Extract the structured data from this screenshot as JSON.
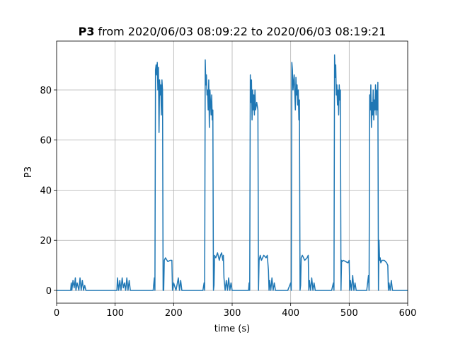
{
  "chart_data": {
    "type": "line",
    "title": {
      "bold": "P3",
      "text": "from 2020/06/03 08:09:22 to 2020/06/03 08:19:21"
    },
    "xlabel": "time (s)",
    "ylabel": "P3",
    "color": "#1f77b4",
    "grid": true,
    "xlim": [
      0,
      600
    ],
    "ylim": [
      -5.1,
      99.5
    ],
    "xticks": [
      0,
      100,
      200,
      300,
      400,
      500,
      600
    ],
    "yticks": [
      0,
      20,
      40,
      60,
      80
    ],
    "x": [
      0,
      5,
      10,
      20,
      24,
      25,
      26,
      28,
      30,
      32,
      33,
      35,
      38,
      40,
      42,
      44,
      46,
      48,
      50,
      60,
      80,
      100,
      103,
      104,
      106,
      108,
      110,
      112,
      114,
      116,
      118,
      120,
      122,
      124,
      126,
      130,
      150,
      165,
      167,
      168,
      169,
      170,
      171,
      172,
      173,
      174,
      175,
      176,
      177,
      178,
      179,
      180,
      181,
      182,
      183,
      184,
      186,
      190,
      194,
      197,
      198,
      200,
      204,
      208,
      210,
      212,
      214,
      216,
      230,
      250,
      252,
      253,
      254,
      255,
      256,
      257,
      258,
      259,
      260,
      261,
      262,
      263,
      264,
      265,
      266,
      267,
      268,
      269,
      270,
      272,
      275,
      278,
      280,
      282,
      284,
      285,
      286,
      288,
      290,
      292,
      294,
      296,
      298,
      300,
      320,
      328,
      329,
      330,
      331,
      332,
      333,
      334,
      335,
      336,
      337,
      338,
      339,
      340,
      342,
      344,
      345,
      346,
      347,
      348,
      350,
      354,
      358,
      360,
      362,
      363,
      364,
      366,
      368,
      370,
      372,
      374,
      380,
      395,
      400,
      401,
      402,
      403,
      404,
      406,
      408,
      409,
      410,
      411,
      412,
      413,
      414,
      415,
      416,
      417,
      418,
      420,
      424,
      428,
      430,
      431,
      432,
      434,
      436,
      438,
      440,
      442,
      444,
      460,
      470,
      473,
      474,
      475,
      476,
      477,
      478,
      479,
      480,
      481,
      482,
      483,
      484,
      485,
      486,
      487,
      488,
      490,
      494,
      498,
      500,
      501,
      502,
      504,
      506,
      508,
      510,
      512,
      530,
      533,
      534,
      535,
      536,
      537,
      538,
      539,
      540,
      541,
      542,
      543,
      544,
      545,
      546,
      547,
      548,
      549,
      550,
      551,
      552,
      553,
      554,
      556,
      560,
      564,
      566,
      567,
      568,
      570,
      572,
      574,
      580,
      600
    ],
    "values": [
      0,
      0,
      0,
      0,
      0,
      3,
      0,
      4,
      1,
      5,
      0,
      3,
      0,
      5,
      0,
      4,
      0,
      2,
      0,
      0,
      0,
      0,
      0,
      5,
      0,
      4,
      0,
      5,
      1,
      3,
      0,
      5,
      0,
      4,
      0,
      0,
      0,
      0,
      5,
      0,
      88,
      90,
      86,
      91,
      80,
      89,
      63,
      84,
      78,
      82,
      70,
      84,
      80,
      0,
      0,
      12,
      13,
      11.5,
      12,
      12,
      0,
      3,
      0,
      5,
      0,
      4,
      0,
      0,
      0,
      0,
      3,
      0,
      92,
      82,
      86,
      78,
      80,
      72,
      84,
      65,
      80,
      75,
      70,
      78,
      68,
      72,
      0,
      2,
      14,
      13,
      15,
      12,
      14,
      15,
      12,
      14,
      5,
      0,
      4,
      0,
      5,
      0,
      3,
      0,
      0,
      0,
      3,
      0,
      86,
      75,
      84,
      68,
      80,
      72,
      78,
      70,
      80,
      72,
      75,
      72,
      0,
      12,
      13,
      14,
      12,
      14,
      13,
      14,
      8,
      0,
      4,
      0,
      5,
      0,
      3,
      0,
      0,
      0,
      3,
      0,
      91,
      88,
      80,
      86,
      72,
      85,
      78,
      82,
      74,
      80,
      68,
      76,
      0,
      2,
      13,
      14,
      12,
      13,
      14,
      0,
      4,
      0,
      5,
      0,
      3,
      0,
      0,
      0,
      0,
      3,
      0,
      94,
      85,
      90,
      78,
      82,
      74,
      80,
      70,
      82,
      76,
      80,
      0,
      12,
      11.5,
      12,
      11.5,
      11,
      12,
      0,
      4,
      0,
      6,
      0,
      3,
      0,
      0,
      6,
      0,
      78,
      72,
      82,
      65,
      75,
      70,
      80,
      68,
      76,
      72,
      82,
      70,
      80,
      72,
      83,
      0,
      20,
      12,
      13,
      11,
      12,
      12,
      11,
      10,
      0,
      3,
      0,
      4,
      0,
      0,
      0
    ]
  }
}
